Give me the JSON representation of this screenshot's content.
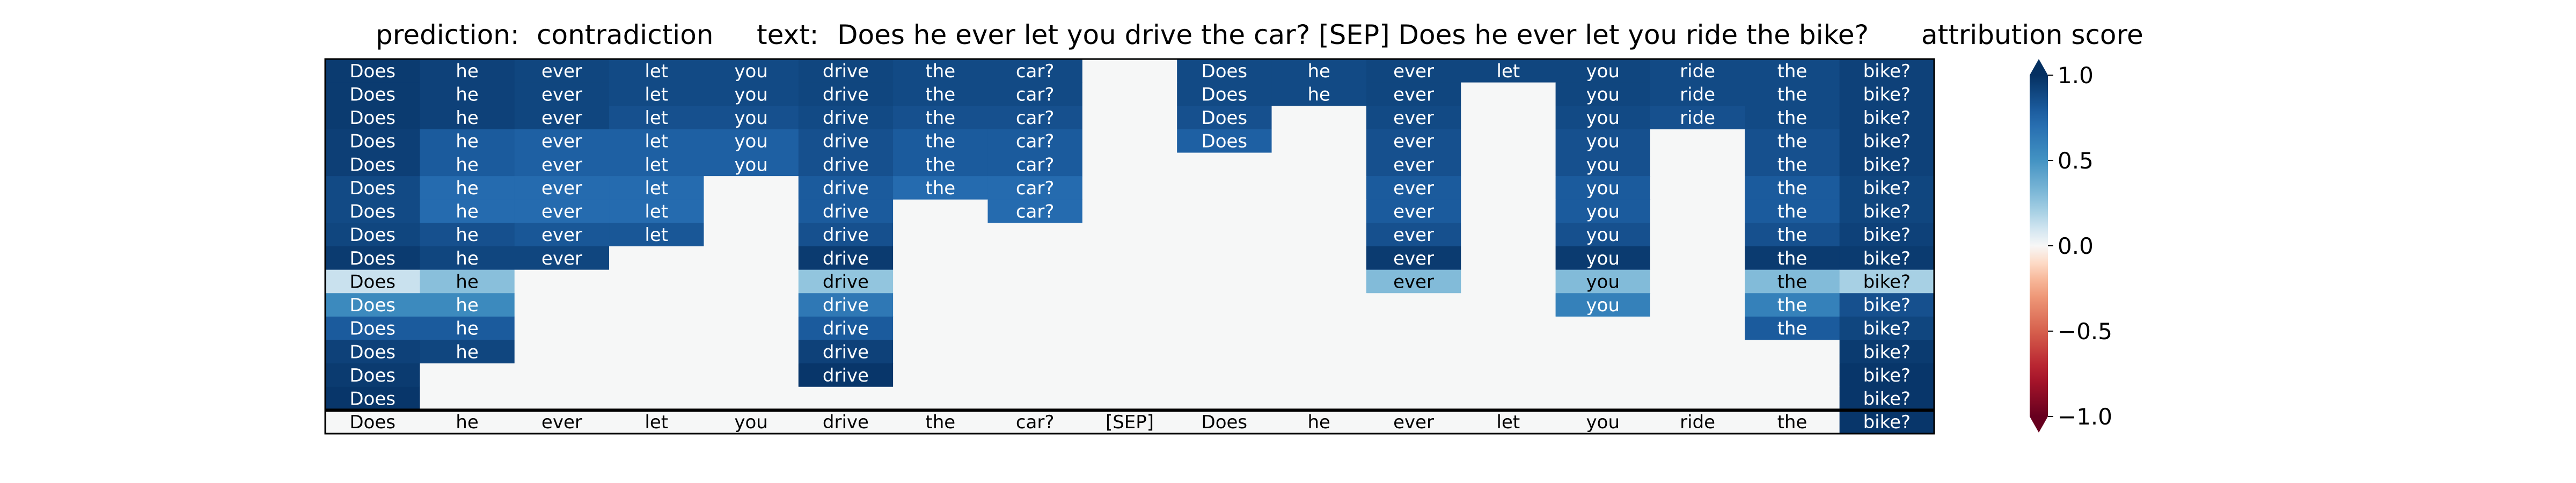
{
  "chart_data": {
    "type": "heatmap",
    "header": {
      "prediction_label": "prediction:",
      "prediction_value": "contradiction",
      "text_label": "text:",
      "text_value": "Does he ever let you drive the car? [SEP] Does he ever let you ride the bike?"
    },
    "tokens": [
      "Does",
      "he",
      "ever",
      "let",
      "you",
      "drive",
      "the",
      "car?",
      "[SEP]",
      "Does",
      "he",
      "ever",
      "let",
      "you",
      "ride",
      "the",
      "bike?"
    ],
    "rows": [
      [
        0.95,
        0.92,
        0.9,
        0.88,
        0.88,
        0.9,
        0.88,
        0.88,
        null,
        0.88,
        0.88,
        0.9,
        0.9,
        0.9,
        0.88,
        0.88,
        0.92
      ],
      [
        0.95,
        0.92,
        0.9,
        0.88,
        0.88,
        0.9,
        0.88,
        0.88,
        null,
        0.88,
        0.88,
        0.9,
        null,
        0.9,
        0.88,
        0.88,
        0.92
      ],
      [
        0.95,
        0.92,
        0.9,
        0.85,
        0.85,
        0.88,
        0.85,
        0.85,
        null,
        0.85,
        null,
        0.88,
        null,
        0.88,
        0.85,
        0.88,
        0.92
      ],
      [
        0.93,
        0.8,
        0.78,
        0.78,
        0.78,
        0.85,
        0.8,
        0.8,
        null,
        0.78,
        null,
        0.85,
        null,
        0.85,
        null,
        0.85,
        0.92
      ],
      [
        0.93,
        0.8,
        0.78,
        0.78,
        0.78,
        0.85,
        0.8,
        0.8,
        null,
        null,
        null,
        0.85,
        null,
        0.85,
        null,
        0.85,
        0.92
      ],
      [
        0.88,
        0.72,
        0.72,
        0.72,
        null,
        0.8,
        0.72,
        0.72,
        null,
        null,
        null,
        0.8,
        null,
        0.8,
        null,
        0.8,
        0.9
      ],
      [
        0.88,
        0.72,
        0.72,
        0.72,
        null,
        0.8,
        null,
        0.72,
        null,
        null,
        null,
        0.8,
        null,
        0.8,
        null,
        0.8,
        0.9
      ],
      [
        0.9,
        0.85,
        0.82,
        0.82,
        null,
        0.85,
        null,
        null,
        null,
        null,
        null,
        0.85,
        null,
        0.85,
        null,
        0.85,
        0.92
      ],
      [
        0.95,
        0.9,
        0.9,
        null,
        null,
        0.95,
        null,
        null,
        null,
        null,
        null,
        0.95,
        null,
        0.95,
        null,
        0.95,
        0.95
      ],
      [
        0.12,
        0.28,
        null,
        null,
        null,
        0.25,
        null,
        null,
        null,
        null,
        null,
        0.3,
        null,
        0.3,
        null,
        0.3,
        0.2
      ],
      [
        0.55,
        0.55,
        null,
        null,
        null,
        0.65,
        null,
        null,
        null,
        null,
        null,
        null,
        null,
        0.6,
        null,
        0.6,
        0.85
      ],
      [
        0.8,
        0.8,
        null,
        null,
        null,
        0.8,
        null,
        null,
        null,
        null,
        null,
        null,
        null,
        null,
        null,
        0.8,
        0.9
      ],
      [
        0.92,
        0.9,
        null,
        null,
        null,
        0.92,
        null,
        null,
        null,
        null,
        null,
        null,
        null,
        null,
        null,
        null,
        0.95
      ],
      [
        0.95,
        null,
        null,
        null,
        null,
        0.97,
        null,
        null,
        null,
        null,
        null,
        null,
        null,
        null,
        null,
        null,
        0.97
      ],
      [
        0.97,
        null,
        null,
        null,
        null,
        null,
        null,
        null,
        null,
        null,
        null,
        null,
        null,
        null,
        null,
        null,
        0.97
      ],
      [
        0.0,
        0.0,
        0.0,
        0.0,
        0.0,
        0.0,
        0.0,
        0.0,
        0.0,
        0.0,
        0.0,
        0.0,
        0.0,
        0.0,
        0.0,
        0.0,
        0.97
      ]
    ],
    "colorbar": {
      "label": "attribution score",
      "range": [
        -1.0,
        1.0
      ],
      "ticks": [
        1.0,
        0.5,
        0.0,
        -0.5,
        -1.0
      ],
      "tick_labels": [
        "1.0",
        "0.5",
        "0.0",
        "−0.5",
        "−1.0"
      ],
      "colormap": "RdBu",
      "extend": "both"
    },
    "colors": {
      "blank_cell": "#f6f7f7",
      "grid_line": "#000000"
    }
  }
}
